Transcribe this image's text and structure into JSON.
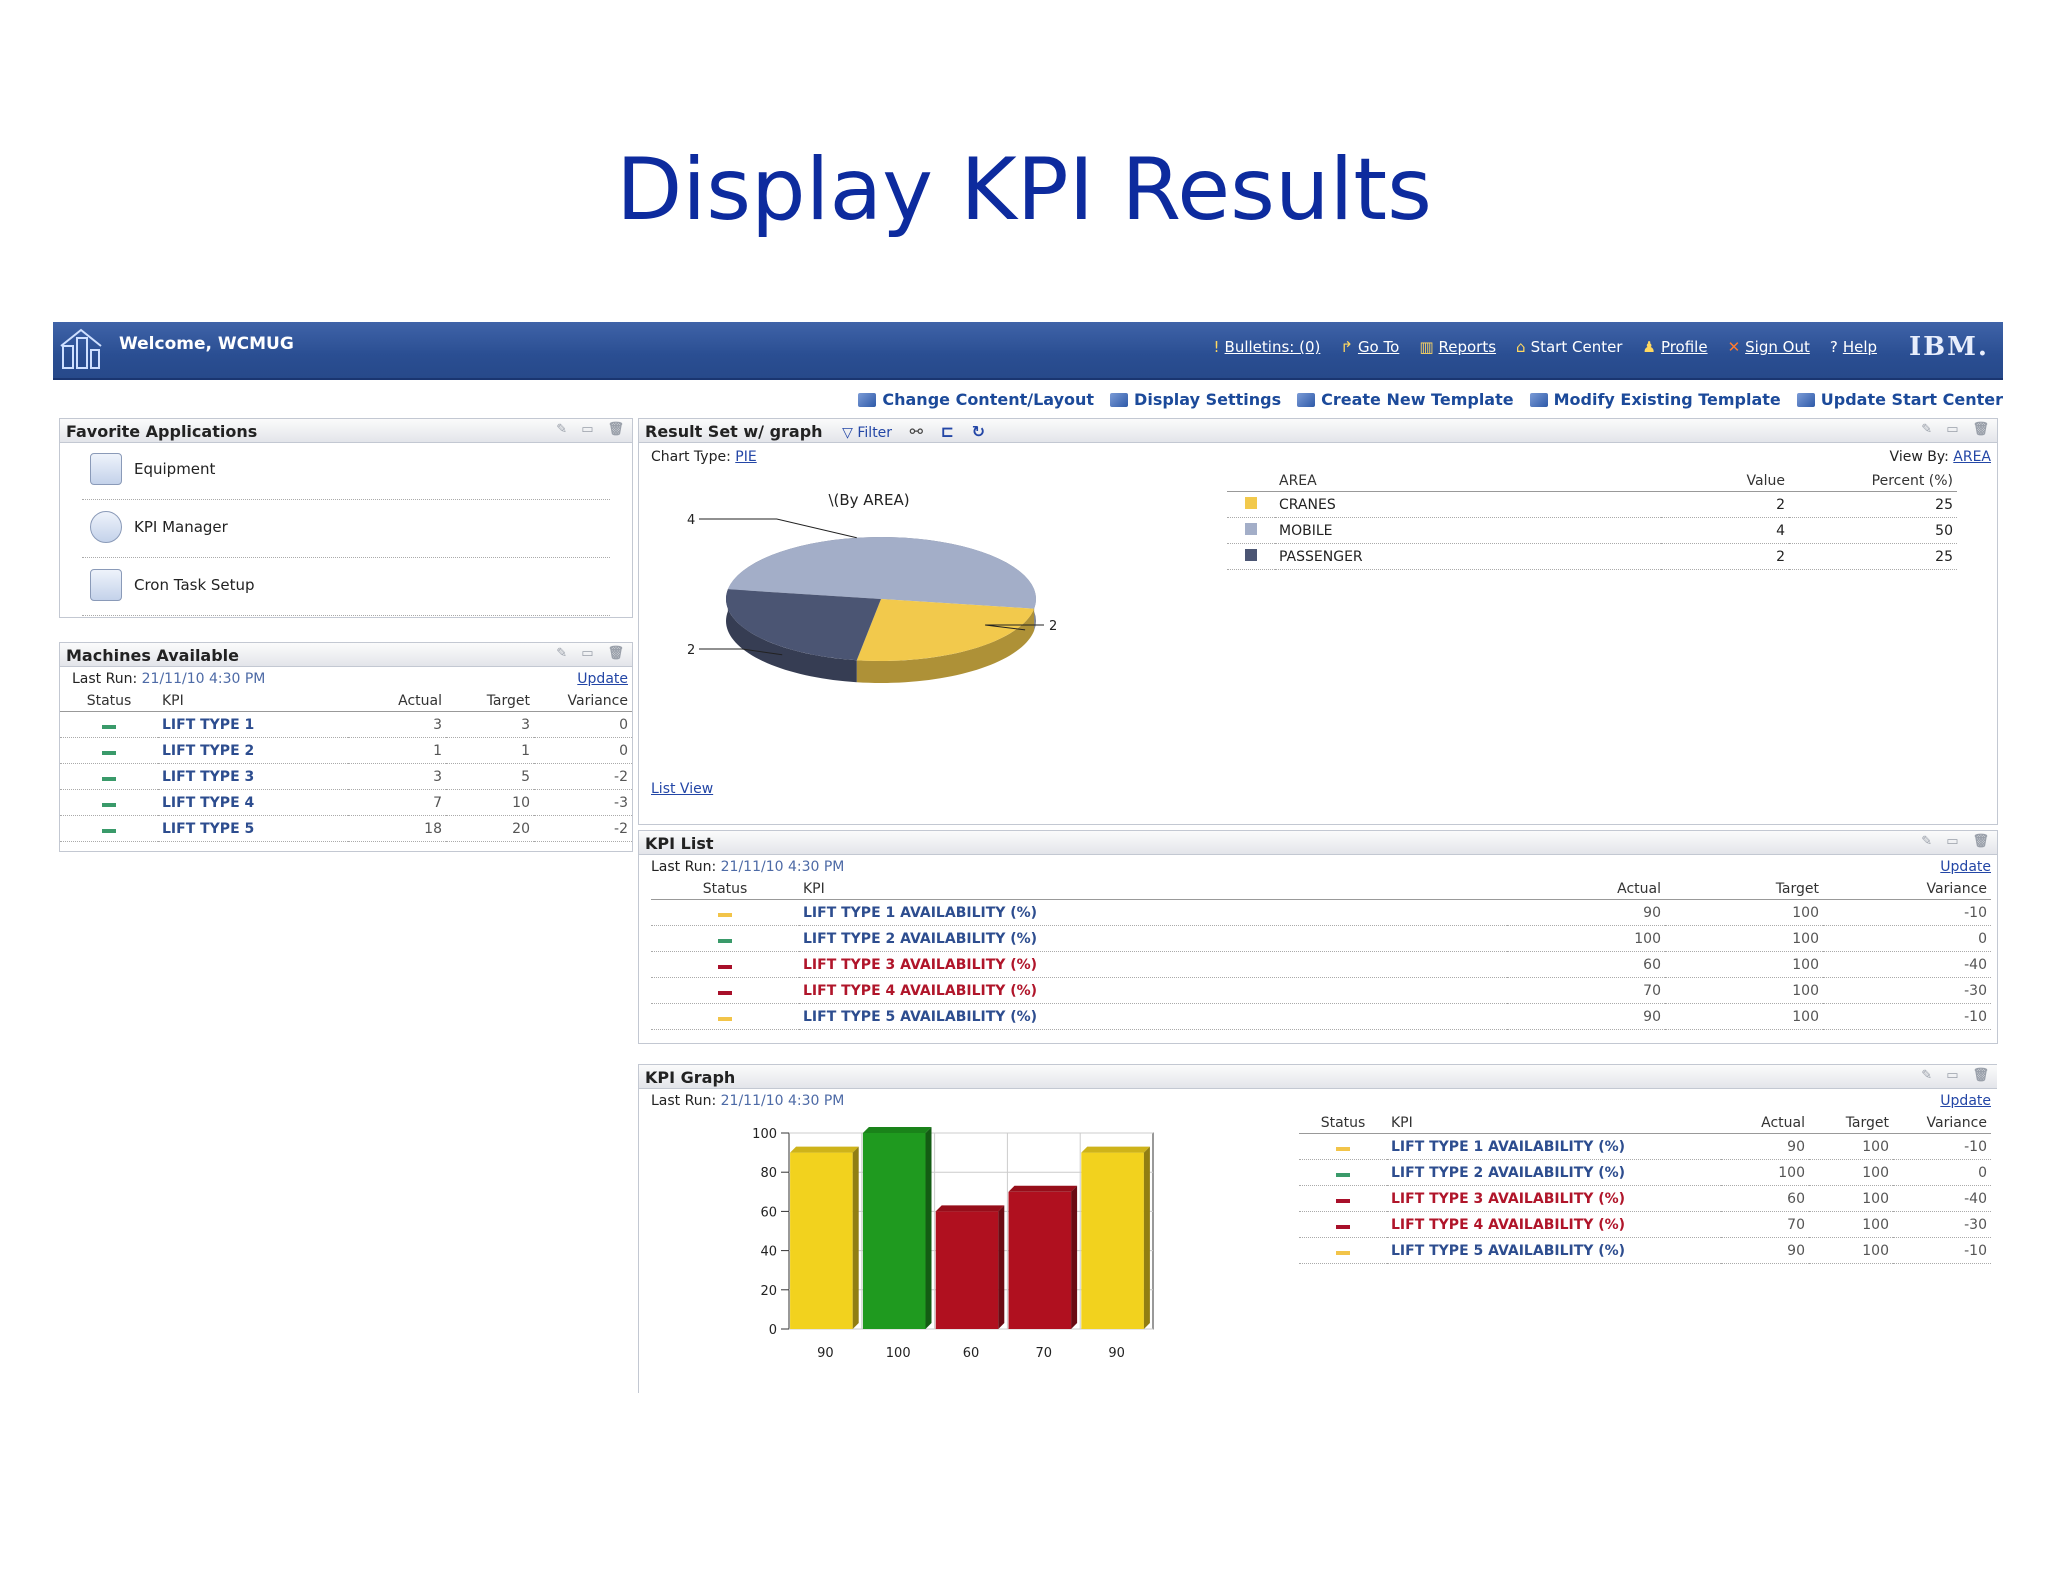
{
  "slide_title": "Display KPI Results",
  "topbar": {
    "welcome": "Welcome, WCMUG",
    "links": [
      {
        "icon": "alert-icon",
        "label": "Bulletins: (0)"
      },
      {
        "icon": "goto-icon",
        "label": "Go To"
      },
      {
        "icon": "reports-icon",
        "label": "Reports"
      },
      {
        "icon": "home-icon",
        "label": "Start Center"
      },
      {
        "icon": "profile-icon",
        "label": "Profile"
      },
      {
        "icon": "signout-icon",
        "label": "Sign Out"
      },
      {
        "icon": "help-icon",
        "label": "Help"
      }
    ],
    "brand": "IBM."
  },
  "toolbar": [
    "Change Content/Layout",
    "Display Settings",
    "Create New Template",
    "Modify Existing Template",
    "Update Start Center"
  ],
  "favorites": {
    "title": "Favorite Applications",
    "items": [
      "Equipment",
      "KPI Manager",
      "Cron Task Setup"
    ]
  },
  "machines": {
    "title": "Machines Available",
    "last_run_label": "Last Run:",
    "last_run": "21/11/10 4:30 PM",
    "update": "Update",
    "headers": [
      "Status",
      "KPI",
      "Actual",
      "Target",
      "Variance"
    ],
    "rows": [
      {
        "status": "green",
        "kpi": "LIFT TYPE 1",
        "actual": "3",
        "target": "3",
        "variance": "0"
      },
      {
        "status": "green",
        "kpi": "LIFT TYPE 2",
        "actual": "1",
        "target": "1",
        "variance": "0"
      },
      {
        "status": "green",
        "kpi": "LIFT TYPE 3",
        "actual": "3",
        "target": "5",
        "variance": "-2"
      },
      {
        "status": "green",
        "kpi": "LIFT TYPE 4",
        "actual": "7",
        "target": "10",
        "variance": "-3"
      },
      {
        "status": "green",
        "kpi": "LIFT TYPE 5",
        "actual": "18",
        "target": "20",
        "variance": "-2"
      }
    ]
  },
  "result_set": {
    "title": "Result Set w/ graph",
    "filter": "Filter",
    "chart_type_label": "Chart Type:",
    "chart_type": "PIE",
    "view_by_label": "View By:",
    "view_by": "AREA",
    "list_view": "List View",
    "pie_title": "\\(By AREA)",
    "table_headers": [
      "AREA",
      "Value",
      "Percent (%)"
    ],
    "rows": [
      {
        "area": "CRANES",
        "value": "2",
        "percent": "25"
      },
      {
        "area": "MOBILE",
        "value": "4",
        "percent": "50"
      },
      {
        "area": "PASSENGER",
        "value": "2",
        "percent": "25"
      }
    ]
  },
  "kpi_list": {
    "title": "KPI List",
    "last_run_label": "Last Run:",
    "last_run": "21/11/10 4:30 PM",
    "update": "Update",
    "headers": [
      "Status",
      "KPI",
      "Actual",
      "Target",
      "Variance"
    ],
    "rows": [
      {
        "status": "yellow",
        "kpi": "LIFT TYPE 1 AVAILABILITY (%)",
        "actual": "90",
        "target": "100",
        "variance": "-10"
      },
      {
        "status": "green",
        "kpi": "LIFT TYPE 2 AVAILABILITY (%)",
        "actual": "100",
        "target": "100",
        "variance": "0"
      },
      {
        "status": "red",
        "kpi": "LIFT TYPE 3 AVAILABILITY (%)",
        "actual": "60",
        "target": "100",
        "variance": "-40"
      },
      {
        "status": "red",
        "kpi": "LIFT TYPE 4 AVAILABILITY (%)",
        "actual": "70",
        "target": "100",
        "variance": "-30"
      },
      {
        "status": "yellow",
        "kpi": "LIFT TYPE 5 AVAILABILITY (%)",
        "actual": "90",
        "target": "100",
        "variance": "-10"
      }
    ]
  },
  "kpi_graph": {
    "title": "KPI Graph",
    "last_run_label": "Last Run:",
    "last_run": "21/11/10 4:30 PM",
    "update": "Update",
    "headers": [
      "Status",
      "KPI",
      "Actual",
      "Target",
      "Variance"
    ],
    "rows": [
      {
        "status": "yellow",
        "kpi": "LIFT TYPE 1 AVAILABILITY (%)",
        "actual": "90",
        "target": "100",
        "variance": "-10"
      },
      {
        "status": "green",
        "kpi": "LIFT TYPE 2 AVAILABILITY (%)",
        "actual": "100",
        "target": "100",
        "variance": "0"
      },
      {
        "status": "red",
        "kpi": "LIFT TYPE 3 AVAILABILITY (%)",
        "actual": "60",
        "target": "100",
        "variance": "-40"
      },
      {
        "status": "red",
        "kpi": "LIFT TYPE 4 AVAILABILITY (%)",
        "actual": "70",
        "target": "100",
        "variance": "-30"
      },
      {
        "status": "yellow",
        "kpi": "LIFT TYPE 5 AVAILABILITY (%)",
        "actual": "90",
        "target": "100",
        "variance": "-10"
      }
    ]
  },
  "status_colors": {
    "green": "#3a9a6a",
    "yellow": "#f2c449",
    "red": "#a8102a"
  },
  "chart_data": [
    {
      "type": "pie",
      "title": "\\(By AREA)",
      "categories": [
        "CRANES",
        "MOBILE",
        "PASSENGER"
      ],
      "values": [
        2,
        4,
        2
      ],
      "colors": [
        "#f2c94c",
        "#a3aec8",
        "#4b5573"
      ],
      "data_labels": [
        "2",
        "4",
        "2"
      ]
    },
    {
      "type": "bar",
      "categories": [
        "90",
        "100",
        "60",
        "70",
        "90"
      ],
      "values": [
        90,
        100,
        60,
        70,
        90
      ],
      "colors": [
        "#f2d21e",
        "#1f9a1f",
        "#b0101f",
        "#b0101f",
        "#f2d21e"
      ],
      "ylim": [
        0,
        100
      ],
      "yticks": [
        0,
        20,
        40,
        60,
        80,
        100
      ],
      "grid": true
    }
  ]
}
